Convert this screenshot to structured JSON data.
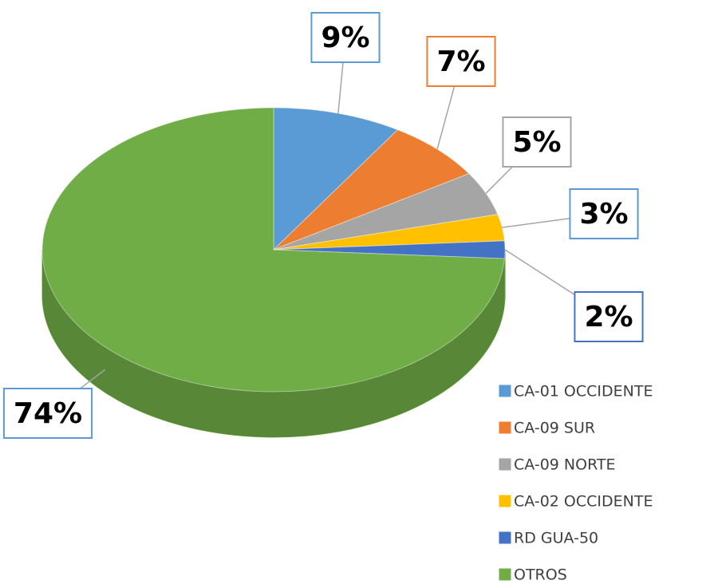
{
  "chart_data": {
    "type": "pie3d",
    "categories": [
      "CA-01 OCCIDENTE",
      "CA-09 SUR",
      "CA-09 NORTE",
      "CA-02 OCCIDENTE",
      "RD GUA-50",
      "OTROS"
    ],
    "values": [
      9,
      7,
      5,
      3,
      2,
      74
    ],
    "value_labels": [
      "9%",
      "7%",
      "5%",
      "3%",
      "2%",
      "74%"
    ],
    "colors": [
      "#5b9bd5",
      "#ed7d31",
      "#a5a5a5",
      "#ffc000",
      "#4472c4",
      "#70ad47"
    ],
    "legend": "right"
  }
}
